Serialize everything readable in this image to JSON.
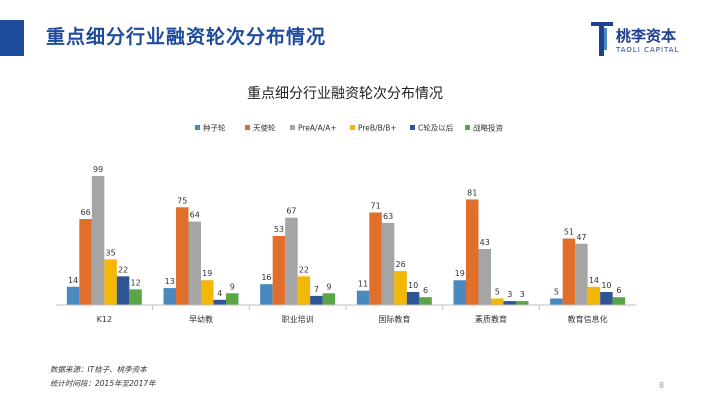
{
  "header": {
    "title": "重点细分行业融资轮次分布情况",
    "logo_name": "桃李资本",
    "logo_sub": "TAOLI CAPITAL"
  },
  "footer": {
    "source": "数据来源：IT桔子、桃李资本",
    "period": "统计时间段：2015年至2017年",
    "page_number": "8"
  },
  "colors": {
    "accent": "#1f4b9d",
    "series": [
      "#4a89c0",
      "#e06f2c",
      "#a5a5a5",
      "#f2b707",
      "#2f5597",
      "#5aa546"
    ]
  },
  "chart_data": {
    "type": "bar",
    "title": "重点细分行业融资轮次分布情况",
    "legend_position": "top",
    "grid": false,
    "categories": [
      "K12",
      "早幼教",
      "职业培训",
      "国际教育",
      "素质教育",
      "教育信息化"
    ],
    "series": [
      {
        "name": "种子轮",
        "values": [
          14,
          13,
          16,
          11,
          19,
          5
        ]
      },
      {
        "name": "天使轮",
        "values": [
          66,
          75,
          53,
          71,
          81,
          51
        ]
      },
      {
        "name": "PreA/A/A+",
        "values": [
          99,
          64,
          67,
          63,
          43,
          47
        ]
      },
      {
        "name": "PreB/B/B+",
        "values": [
          35,
          19,
          22,
          26,
          5,
          14
        ]
      },
      {
        "name": "C轮及以后",
        "values": [
          22,
          4,
          7,
          10,
          3,
          10
        ]
      },
      {
        "name": "战略投资",
        "values": [
          12,
          9,
          9,
          6,
          3,
          6
        ]
      }
    ],
    "ylim": [
      0,
      100
    ]
  }
}
